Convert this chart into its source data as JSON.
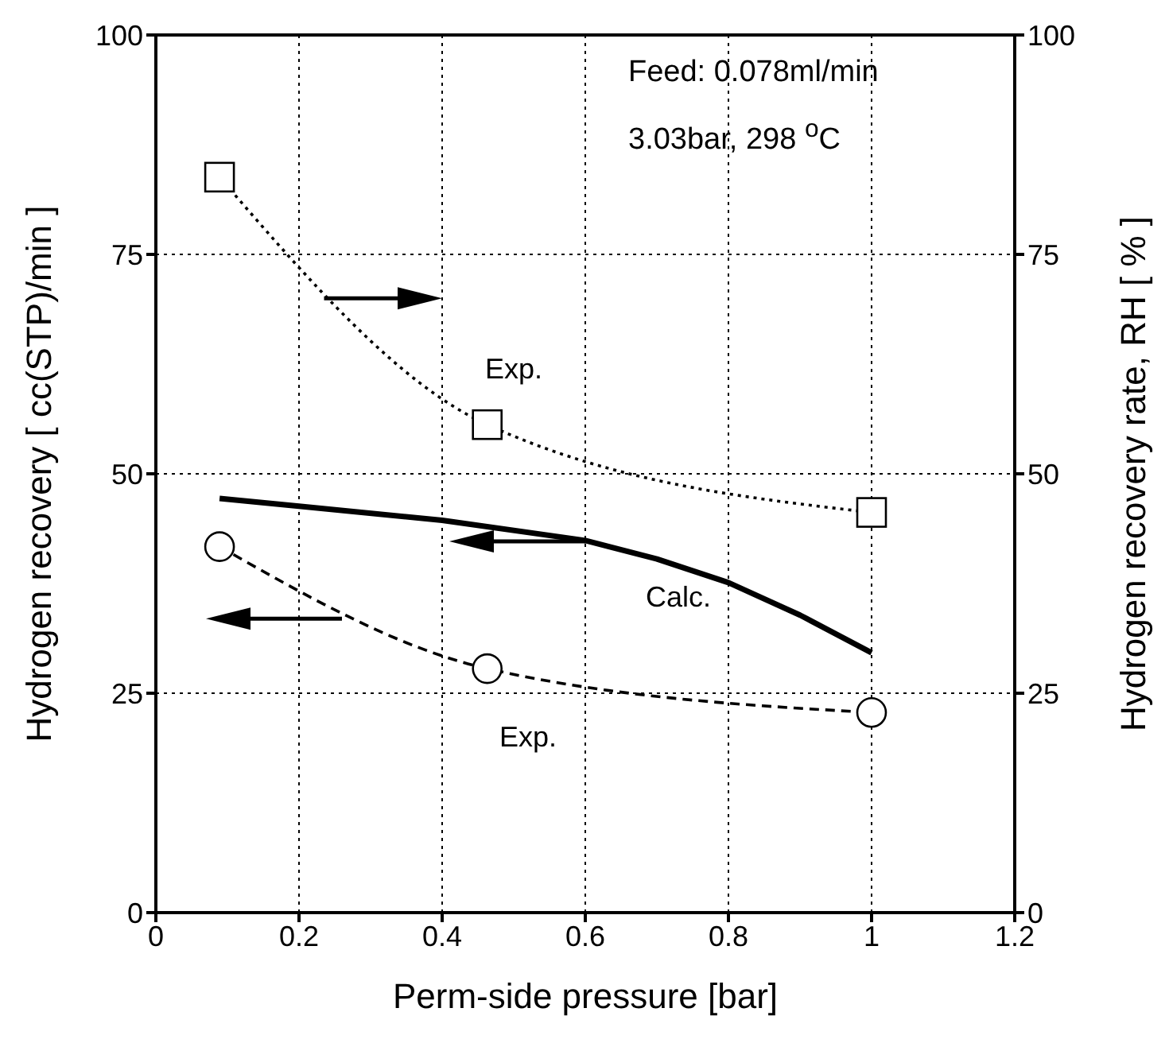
{
  "chart_data": {
    "type": "line",
    "xlabel": "Perm-side pressure [bar]",
    "ylabel": "Hydrogen recovery  [ cc(STP)/min ]",
    "y2label": "Hydrogen recovery rate, RH [ % ]",
    "xlim": [
      0,
      1.2
    ],
    "xticks": [
      0,
      0.2,
      0.4,
      0.6,
      0.8,
      1,
      1.2
    ],
    "ylim": [
      0,
      100
    ],
    "yticks": [
      0,
      25,
      50,
      75,
      100
    ],
    "y2lim": [
      0,
      100
    ],
    "y2ticks": [
      0,
      25,
      50,
      75,
      100
    ],
    "grid": true,
    "series": [
      {
        "axis": "y2",
        "color": "#000000",
        "marker": "square",
        "line_style": "dotted",
        "x": [
          0.089,
          0.463,
          1.0
        ],
        "values": [
          83.8,
          55.6,
          45.6
        ]
      },
      {
        "color": "#000000",
        "marker": "none",
        "line_style": "solid",
        "x": [
          0.089,
          0.2,
          0.4,
          0.6,
          0.7,
          0.8,
          0.9,
          1.0
        ],
        "values": [
          47.2,
          46.3,
          44.7,
          42.4,
          40.3,
          37.6,
          33.9,
          29.6
        ]
      },
      {
        "color": "#000000",
        "marker": "circle",
        "line_style": "dashed",
        "x": [
          0.089,
          0.463,
          1.0
        ],
        "values": [
          41.7,
          27.8,
          22.8
        ]
      }
    ],
    "annotations": [
      "Feed: 0.078ml/min",
      "3.03bar, 298 $^{o}$C",
      "Exp.",
      "Calc.",
      "Exp."
    ]
  }
}
